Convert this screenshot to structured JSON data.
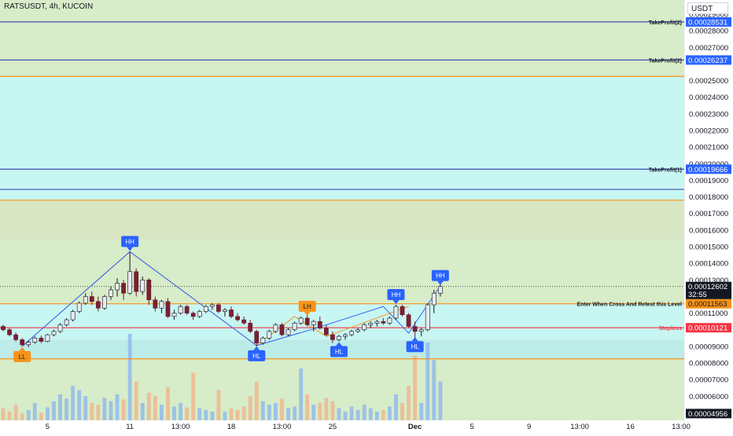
{
  "chart_data": {
    "type": "candlestick",
    "title": "RATSUSDT, 4h, KUCOIN",
    "currency": "USDT",
    "ylim": [
      4.55e-05,
      0.0002985
    ],
    "y_ticks": [
      "0.00029000",
      "0.00028000",
      "0.00027000",
      "0.00025000",
      "0.00024000",
      "0.00023000",
      "0.00022000",
      "0.00021000",
      "0.00020000",
      "0.00019000",
      "0.00018000",
      "0.00017000",
      "0.00016000",
      "0.00015000",
      "0.00014000",
      "0.00013000",
      "0.00011000",
      "0.00009000",
      "0.00008000",
      "0.00007000",
      "0.00006000"
    ],
    "x_ticks": [
      {
        "label": "5",
        "index": 7
      },
      {
        "label": "11",
        "index": 20
      },
      {
        "label": "13:00",
        "index": 28
      },
      {
        "label": "18",
        "index": 36
      },
      {
        "label": "13:00",
        "index": 44
      },
      {
        "label": "25",
        "index": 52
      },
      {
        "label": "Dec",
        "index": 65
      },
      {
        "label": "5",
        "index": 74
      },
      {
        "label": "9",
        "index": 83
      },
      {
        "label": "13:00",
        "index": 91
      },
      {
        "label": "16",
        "index": 99
      },
      {
        "label": "13:00",
        "index": 107
      }
    ],
    "bars_total": 108,
    "candles": [
      [
        0.000102,
        0.000103,
        9.9e-05,
        0.0001
      ],
      [
        0.0001,
        0.000101,
        9.6e-05,
        9.7e-05
      ],
      [
        9.7e-05,
        9.85e-05,
        9.3e-05,
        9.4e-05
      ],
      [
        9.4e-05,
        9.5e-05,
        9e-05,
        9.1e-05
      ],
      [
        9.1e-05,
        9.35e-05,
        8.95e-05,
        9.25e-05
      ],
      [
        9.25e-05,
        9.6e-05,
        9.15e-05,
        9.5e-05
      ],
      [
        9.5e-05,
        9.65e-05,
        9.2e-05,
        9.3e-05
      ],
      [
        9.3e-05,
        9.75e-05,
        9.25e-05,
        9.7e-05
      ],
      [
        9.7e-05,
        0.0001,
        9.6e-05,
        9.9e-05
      ],
      [
        9.9e-05,
        0.000104,
        9.8e-05,
        0.000103
      ],
      [
        0.000103,
        0.000107,
        0.000102,
        0.000106
      ],
      [
        0.000106,
        0.000112,
        0.000105,
        0.000111
      ],
      [
        0.000111,
        0.000117,
        0.00011,
        0.000116
      ],
      [
        0.000116,
        0.000122,
        0.000115,
        0.00012
      ],
      [
        0.00012,
        0.000123,
        0.000115,
        0.000117
      ],
      [
        0.000117,
        0.00012,
        0.000111,
        0.000113
      ],
      [
        0.000113,
        0.000121,
        0.000112,
        0.00012
      ],
      [
        0.00012,
        0.000126,
        0.000118,
        0.000124
      ],
      [
        0.000124,
        0.000131,
        0.00012,
        0.000128
      ],
      [
        0.000128,
        0.00013,
        0.000118,
        0.000122
      ],
      [
        0.000122,
        0.000147,
        0.000121,
        0.000135
      ],
      [
        0.000135,
        0.000137,
        0.00012,
        0.000123
      ],
      [
        0.000123,
        0.000132,
        0.000121,
        0.00013
      ],
      [
        0.00013,
        0.000131,
        0.000115,
        0.000118
      ],
      [
        0.000118,
        0.00012,
        0.000111,
        0.000113
      ],
      [
        0.000113,
        0.000118,
        0.00011,
        0.000117
      ],
      [
        0.000117,
        0.000119,
        0.000107,
        0.000108
      ],
      [
        0.000108,
        0.000112,
        0.000106,
        0.00011
      ],
      [
        0.00011,
        0.000115,
        0.000109,
        0.000114
      ],
      [
        0.000114,
        0.000115,
        0.000109,
        0.00011
      ],
      [
        0.00011,
        0.000111,
        0.000106,
        0.000108
      ],
      [
        0.000108,
        0.000112,
        0.000107,
        0.000111
      ],
      [
        0.000111,
        0.000115,
        0.00011,
        0.000114
      ],
      [
        0.000114,
        0.000116,
        0.000112,
        0.000115
      ],
      [
        0.000115,
        0.000116,
        0.00011,
        0.000111
      ],
      [
        0.000111,
        0.000113,
        0.000108,
        0.000112
      ],
      [
        0.000112,
        0.000114,
        0.000107,
        0.000108
      ],
      [
        0.000108,
        0.00011,
        0.000105,
        0.000106
      ],
      [
        0.000106,
        0.000108,
        0.000103,
        0.000104
      ],
      [
        0.000104,
        0.000106,
        9.8e-05,
        9.9e-05
      ],
      [
        9.9e-05,
        0.0001,
        9e-05,
        9.2e-05
      ],
      [
        9.2e-05,
        9.6e-05,
        9.1e-05,
        9.5e-05
      ],
      [
        9.5e-05,
        0.0001,
        9.4e-05,
        9.9e-05
      ],
      [
        9.9e-05,
        0.000104,
        9.8e-05,
        0.000103
      ],
      [
        0.000103,
        0.000104,
        9.6e-05,
        9.7e-05
      ],
      [
        9.7e-05,
        0.000101,
        9.6e-05,
        0.0001
      ],
      [
        0.0001,
        0.000105,
        9.9e-05,
        0.000104
      ],
      [
        0.000104,
        0.000108,
        0.000103,
        0.000107
      ],
      [
        0.000107,
        0.00011,
        0.000102,
        0.000103
      ],
      [
        0.000103,
        0.000106,
        9.9e-05,
        0.000105
      ],
      [
        0.000105,
        0.000108,
        0.0001,
        0.000101
      ],
      [
        0.000101,
        0.000103,
        9.6e-05,
        9.7e-05
      ],
      [
        9.7e-05,
        9.9e-05,
        9.2e-05,
        9.4e-05
      ],
      [
        9.4e-05,
        9.7e-05,
        9.3e-05,
        9.6e-05
      ],
      [
        9.6e-05,
        9.8e-05,
        9.4e-05,
        9.7e-05
      ],
      [
        9.7e-05,
        0.0001,
        9.6e-05,
        9.9e-05
      ],
      [
        9.9e-05,
        0.000101,
        9.8e-05,
        0.0001
      ],
      [
        0.0001,
        0.000104,
        9.9e-05,
        0.000103
      ],
      [
        0.000103,
        0.000105,
        0.000101,
        0.000104
      ],
      [
        0.000104,
        0.000106,
        0.000102,
        0.000105
      ],
      [
        0.000105,
        0.000107,
        0.000103,
        0.000104
      ],
      [
        0.000104,
        0.000108,
        0.000103,
        0.000107
      ],
      [
        0.000107,
        0.000115,
        0.000106,
        0.000114
      ],
      [
        0.000114,
        0.000115,
        0.000108,
        0.000109
      ],
      [
        0.000109,
        0.00011,
        0.000101,
        0.000102
      ],
      [
        0.000102,
        0.000105,
        9.5e-05,
        9.9e-05
      ],
      [
        9.9e-05,
        0.000101,
        9.6e-05,
        0.0001
      ],
      [
        0.0001,
        0.000116,
        9.9e-05,
        0.000115
      ],
      [
        0.000115,
        0.000124,
        0.00011,
        0.000122
      ],
      [
        0.000122,
        0.00013,
        0.00012,
        0.000126
      ]
    ],
    "volume": [
      {
        "v": 0.14,
        "c": "r"
      },
      {
        "v": 0.1,
        "c": "r"
      },
      {
        "v": 0.18,
        "c": "r"
      },
      {
        "v": 0.08,
        "c": "r"
      },
      {
        "v": 0.12,
        "c": "g"
      },
      {
        "v": 0.2,
        "c": "g"
      },
      {
        "v": 0.09,
        "c": "r"
      },
      {
        "v": 0.15,
        "c": "g"
      },
      {
        "v": 0.22,
        "c": "g"
      },
      {
        "v": 0.3,
        "c": "g"
      },
      {
        "v": 0.25,
        "c": "g"
      },
      {
        "v": 0.4,
        "c": "g"
      },
      {
        "v": 0.35,
        "c": "g"
      },
      {
        "v": 0.28,
        "c": "g"
      },
      {
        "v": 0.2,
        "c": "r"
      },
      {
        "v": 0.18,
        "c": "r"
      },
      {
        "v": 0.26,
        "c": "g"
      },
      {
        "v": 0.22,
        "c": "g"
      },
      {
        "v": 0.3,
        "c": "g"
      },
      {
        "v": 0.24,
        "c": "r"
      },
      {
        "v": 1.0,
        "c": "g"
      },
      {
        "v": 0.45,
        "c": "r"
      },
      {
        "v": 0.2,
        "c": "g"
      },
      {
        "v": 0.32,
        "c": "r"
      },
      {
        "v": 0.28,
        "c": "r"
      },
      {
        "v": 0.18,
        "c": "g"
      },
      {
        "v": 0.38,
        "c": "r"
      },
      {
        "v": 0.16,
        "c": "g"
      },
      {
        "v": 0.2,
        "c": "g"
      },
      {
        "v": 0.15,
        "c": "r"
      },
      {
        "v": 0.55,
        "c": "r"
      },
      {
        "v": 0.14,
        "c": "g"
      },
      {
        "v": 0.12,
        "c": "g"
      },
      {
        "v": 0.1,
        "c": "g"
      },
      {
        "v": 0.35,
        "c": "r"
      },
      {
        "v": 0.1,
        "c": "g"
      },
      {
        "v": 0.14,
        "c": "r"
      },
      {
        "v": 0.12,
        "c": "r"
      },
      {
        "v": 0.16,
        "c": "r"
      },
      {
        "v": 0.28,
        "c": "r"
      },
      {
        "v": 0.45,
        "c": "r"
      },
      {
        "v": 0.22,
        "c": "g"
      },
      {
        "v": 0.18,
        "c": "g"
      },
      {
        "v": 0.2,
        "c": "g"
      },
      {
        "v": 0.25,
        "c": "r"
      },
      {
        "v": 0.14,
        "c": "g"
      },
      {
        "v": 0.16,
        "c": "g"
      },
      {
        "v": 0.6,
        "c": "g"
      },
      {
        "v": 0.3,
        "c": "r"
      },
      {
        "v": 0.18,
        "c": "g"
      },
      {
        "v": 0.2,
        "c": "r"
      },
      {
        "v": 0.26,
        "c": "r"
      },
      {
        "v": 0.22,
        "c": "r"
      },
      {
        "v": 0.14,
        "c": "g"
      },
      {
        "v": 0.1,
        "c": "g"
      },
      {
        "v": 0.16,
        "c": "g"
      },
      {
        "v": 0.12,
        "c": "g"
      },
      {
        "v": 0.18,
        "c": "g"
      },
      {
        "v": 0.14,
        "c": "g"
      },
      {
        "v": 0.1,
        "c": "g"
      },
      {
        "v": 0.12,
        "c": "r"
      },
      {
        "v": 0.16,
        "c": "g"
      },
      {
        "v": 0.3,
        "c": "g"
      },
      {
        "v": 0.2,
        "c": "r"
      },
      {
        "v": 0.4,
        "c": "r"
      },
      {
        "v": 0.75,
        "c": "r"
      },
      {
        "v": 0.2,
        "c": "g"
      },
      {
        "v": 0.9,
        "c": "g"
      },
      {
        "v": 0.7,
        "c": "g"
      },
      {
        "v": 0.45,
        "c": "g"
      }
    ],
    "zigzag_orange": [
      [
        3,
        9e-05
      ],
      [
        20,
        0.000147
      ],
      [
        40,
        9.05e-05
      ],
      [
        46,
        0.000108
      ],
      [
        51,
        9.6e-05
      ],
      [
        64,
        0.000114
      ]
    ],
    "zigzag_blue": [
      [
        3,
        9e-05
      ],
      [
        20,
        0.000147
      ],
      [
        40,
        9.05e-05
      ],
      [
        49,
        0.0001005
      ],
      [
        60,
        0.000114
      ],
      [
        64,
        9.8e-05
      ],
      [
        69,
        0.0001265
      ]
    ],
    "swing_labels": [
      {
        "text": "LL",
        "index": 3,
        "price": 9e-05,
        "pos": "below",
        "color": "#f7931a"
      },
      {
        "text": "HH",
        "index": 20,
        "price": 0.000147,
        "pos": "above",
        "color": "#2962ff"
      },
      {
        "text": "HL",
        "index": 40,
        "price": 9.05e-05,
        "pos": "below",
        "color": "#2962ff"
      },
      {
        "text": "LH",
        "index": 48,
        "price": 0.000108,
        "pos": "above",
        "color": "#f7931a"
      },
      {
        "text": "HL",
        "index": 53,
        "price": 9.3e-05,
        "pos": "below",
        "color": "#2962ff"
      },
      {
        "text": "HH",
        "index": 62,
        "price": 0.000115,
        "pos": "above",
        "color": "#2962ff"
      },
      {
        "text": "HL",
        "index": 65,
        "price": 9.6e-05,
        "pos": "below",
        "color": "#2962ff"
      },
      {
        "text": "HH",
        "index": 69,
        "price": 0.0001265,
        "pos": "above",
        "color": "#2962ff"
      }
    ],
    "hlines": [
      {
        "price": 0.00028531,
        "color": "#3f51b5",
        "label": "TakeProfit(2)",
        "tag": "0.00028531",
        "tag_color": "#2962ff"
      },
      {
        "price": 0.00026237,
        "color": "#3f51b5",
        "label": "TakeProfit(2)",
        "tag": "0.00026237",
        "tag_color": "#2962ff"
      },
      {
        "price": 0.0002525,
        "color": "#f7931a"
      },
      {
        "price": 0.00019666,
        "color": "#3f51b5",
        "label": "TakeProfit(1)",
        "tag": "0.00019666",
        "tag_color": "#2962ff"
      },
      {
        "price": 0.0001845,
        "color": "#3f51b5"
      },
      {
        "price": 0.000178,
        "color": "#f7931a"
      },
      {
        "price": 0.00011563,
        "color": "#f7931a",
        "label": "Enter When Cross And Retest this Level",
        "tag": "0.00011563",
        "tag_color": "#f7931a",
        "tag_text": "#131722"
      },
      {
        "price": 0.00010121,
        "color": "#f23645",
        "label": "Stoploss",
        "label_color": "#f23645",
        "tag": "0.00010121",
        "tag_color": "#f23645"
      },
      {
        "price": 8.25e-05,
        "color": "#f7931a"
      }
    ],
    "zones": [
      {
        "from": 0.0002985,
        "to": 0.0002525,
        "color": "#d7ecc8"
      },
      {
        "from": 0.0002525,
        "to": 0.000178,
        "color": "#c8f6f2"
      },
      {
        "from": 0.000178,
        "to": 0.000154,
        "color": "#d8e6c4"
      },
      {
        "from": 0.000154,
        "to": 0.00011563,
        "color": "#d7ecc8"
      },
      {
        "from": 0.00011563,
        "to": 9.4e-05,
        "color": "#c8f6f2"
      },
      {
        "from": 9.4e-05,
        "to": 8.25e-05,
        "color": "#bcebe8"
      },
      {
        "from": 8.25e-05,
        "to": 4.55e-05,
        "color": "#d7ecc8"
      }
    ],
    "last_price": {
      "price": 0.00012602,
      "value": "0.00012602",
      "countdown": "32:55"
    },
    "low_tag": {
      "price": 4.956e-05,
      "value": "0.00004956"
    }
  }
}
